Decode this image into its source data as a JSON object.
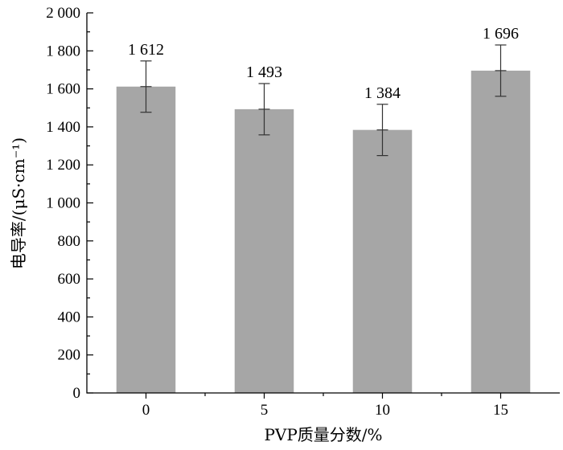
{
  "chart_data": {
    "type": "bar",
    "categories": [
      "0",
      "5",
      "10",
      "15"
    ],
    "values": [
      1612,
      1493,
      1384,
      1696
    ],
    "data_labels": [
      "1 612",
      "1 493",
      "1 384",
      "1 696"
    ],
    "error": [
      135,
      135,
      135,
      135
    ],
    "xlabel": "PVP质量分数/%",
    "ylabel": "电导率/(μS·cm⁻¹)",
    "ylim": [
      0,
      2000
    ],
    "yticks": [
      0,
      200,
      400,
      600,
      800,
      1000,
      1200,
      1400,
      1600,
      1800,
      2000
    ],
    "ytick_labels": [
      "0",
      "200",
      "400",
      "600",
      "800",
      "1 000",
      "1 200",
      "1 400",
      "1 600",
      "1 800",
      "2 000"
    ],
    "bar_color": "#a6a6a6",
    "grid": false,
    "legend": "none"
  }
}
